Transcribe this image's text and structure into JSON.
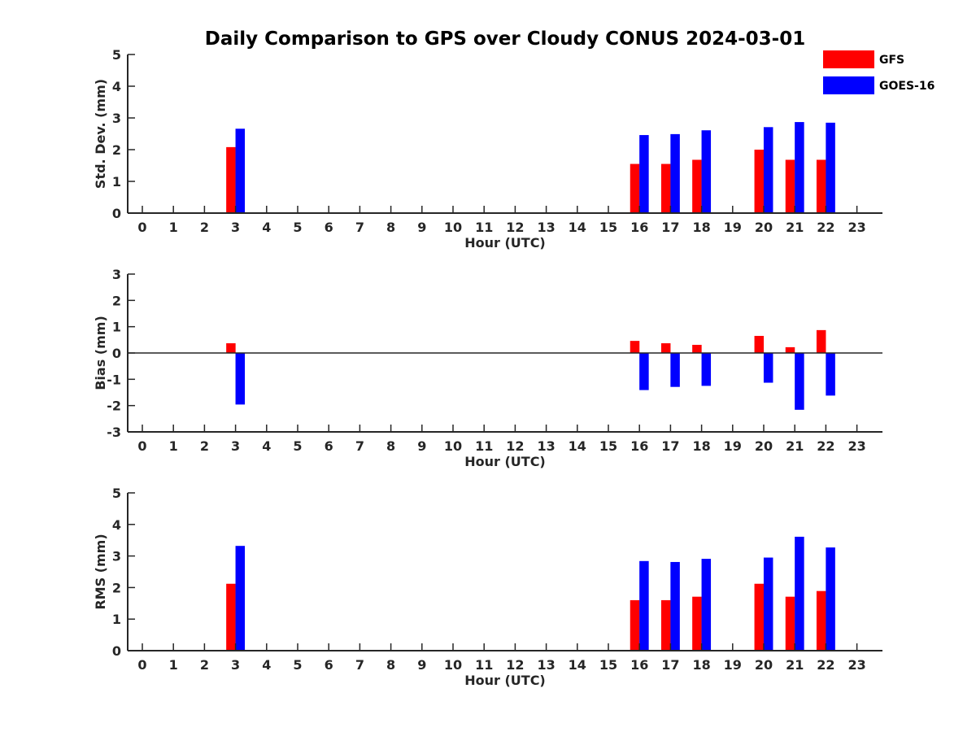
{
  "chart_data": {
    "type": "bar",
    "title": "Daily Comparison to GPS over Cloudy CONUS 2024-03-01",
    "legend": {
      "position": "top-right",
      "entries": [
        {
          "name": "GFS",
          "color": "#ff0000"
        },
        {
          "name": "GOES-16",
          "color": "#0000ff"
        }
      ]
    },
    "categories": [
      "0",
      "1",
      "2",
      "3",
      "4",
      "5",
      "6",
      "7",
      "8",
      "9",
      "10",
      "11",
      "12",
      "13",
      "14",
      "15",
      "16",
      "17",
      "18",
      "19",
      "20",
      "21",
      "22",
      "23"
    ],
    "panels": [
      {
        "ylabel": "Std. Dev. (mm)",
        "xlabel": "Hour (UTC)",
        "ylim": [
          0,
          5
        ],
        "yticks": [
          "0",
          "1",
          "2",
          "3",
          "4",
          "5"
        ],
        "zero_line": false,
        "series": [
          {
            "name": "GFS",
            "color": "#ff0000",
            "values": [
              null,
              null,
              null,
              2.08,
              null,
              null,
              null,
              null,
              null,
              null,
              null,
              null,
              null,
              null,
              null,
              null,
              1.55,
              1.55,
              1.68,
              null,
              2.0,
              1.68,
              1.68,
              null
            ]
          },
          {
            "name": "GOES-16",
            "color": "#0000ff",
            "values": [
              null,
              null,
              null,
              2.66,
              null,
              null,
              null,
              null,
              null,
              null,
              null,
              null,
              null,
              null,
              null,
              null,
              2.46,
              2.49,
              2.61,
              null,
              2.71,
              2.87,
              2.85,
              null
            ]
          }
        ]
      },
      {
        "ylabel": "Bias (mm)",
        "xlabel": "Hour (UTC)",
        "ylim": [
          -3,
          3
        ],
        "yticks": [
          "-3",
          "-2",
          "-1",
          "0",
          "1",
          "2",
          "3"
        ],
        "zero_line": true,
        "series": [
          {
            "name": "GFS",
            "color": "#ff0000",
            "values": [
              null,
              null,
              null,
              0.37,
              null,
              null,
              null,
              null,
              null,
              null,
              null,
              null,
              null,
              null,
              null,
              null,
              0.46,
              0.37,
              0.31,
              null,
              0.65,
              0.22,
              0.87,
              null
            ]
          },
          {
            "name": "GOES-16",
            "color": "#0000ff",
            "values": [
              null,
              null,
              null,
              -1.96,
              null,
              null,
              null,
              null,
              null,
              null,
              null,
              null,
              null,
              null,
              null,
              null,
              -1.41,
              -1.29,
              -1.25,
              null,
              -1.13,
              -2.16,
              -1.62,
              null
            ]
          }
        ]
      },
      {
        "ylabel": "RMS (mm)",
        "xlabel": "Hour (UTC)",
        "ylim": [
          0,
          5
        ],
        "yticks": [
          "0",
          "1",
          "2",
          "3",
          "4",
          "5"
        ],
        "zero_line": false,
        "series": [
          {
            "name": "GFS",
            "color": "#ff0000",
            "values": [
              null,
              null,
              null,
              2.12,
              null,
              null,
              null,
              null,
              null,
              null,
              null,
              null,
              null,
              null,
              null,
              null,
              1.6,
              1.6,
              1.71,
              null,
              2.12,
              1.71,
              1.89,
              null
            ]
          },
          {
            "name": "GOES-16",
            "color": "#0000ff",
            "values": [
              null,
              null,
              null,
              3.32,
              null,
              null,
              null,
              null,
              null,
              null,
              null,
              null,
              null,
              null,
              null,
              null,
              2.84,
              2.81,
              2.91,
              null,
              2.95,
              3.61,
              3.27,
              null
            ]
          }
        ]
      }
    ]
  }
}
